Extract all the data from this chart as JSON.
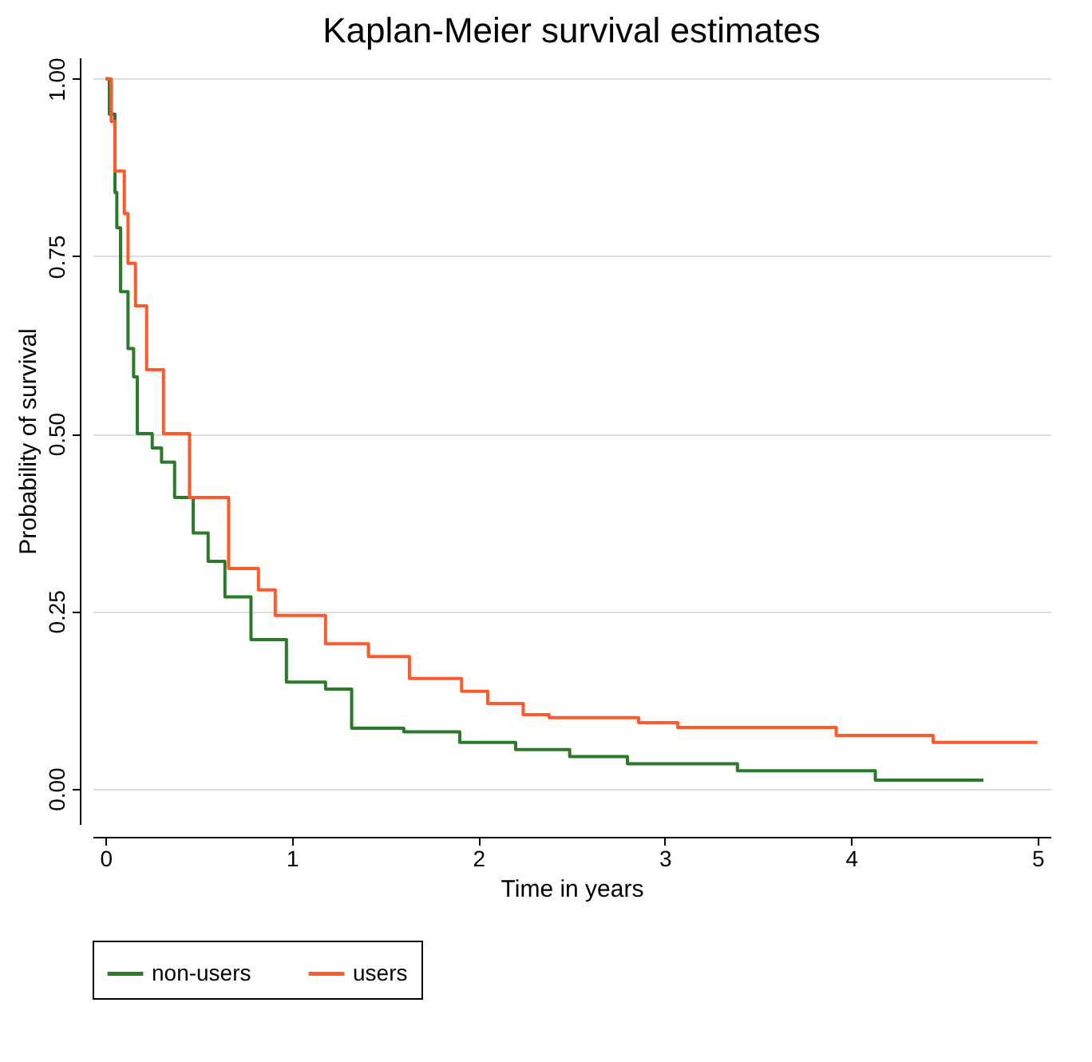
{
  "chart_data": {
    "type": "step",
    "title": "Kaplan-Meier survival estimates",
    "xlabel": "Time in years",
    "ylabel": "Probability of survival",
    "xlim": [
      -0.07,
      5.07
    ],
    "xticks": [
      0,
      1,
      2,
      3,
      4,
      5
    ],
    "ylim": [
      -0.05,
      1.03
    ],
    "yticks": [
      {
        "value": 0,
        "label": "0.00"
      },
      {
        "value": 0.25,
        "label": "0.25"
      },
      {
        "value": 0.5,
        "label": "0.50"
      },
      {
        "value": 0.75,
        "label": "0.75"
      },
      {
        "value": 1,
        "label": "1.00"
      }
    ],
    "grid": "y",
    "legend": "bottom",
    "line_style": "solid",
    "marker": "none",
    "series": [
      {
        "name": "non-users",
        "color": "#2a7a2a",
        "x": [
          0,
          0.02,
          0.05,
          0.06,
          0.08,
          0.12,
          0.15,
          0.17,
          0.25,
          0.3,
          0.37,
          0.47,
          0.55,
          0.64,
          0.78,
          0.97,
          1.18,
          1.32,
          1.6,
          1.9,
          2.2,
          2.49,
          2.8,
          3.39,
          4.13,
          4.71
        ],
        "values": [
          1,
          0.95,
          0.84,
          0.79,
          0.7,
          0.62,
          0.58,
          0.5,
          0.48,
          0.46,
          0.41,
          0.36,
          0.32,
          0.27,
          0.21,
          0.15,
          0.14,
          0.085,
          0.08,
          0.065,
          0.055,
          0.045,
          0.035,
          0.025,
          0.012,
          0.012
        ]
      },
      {
        "name": "users",
        "color": "#ff5a2a",
        "x": [
          0,
          0.03,
          0.05,
          0.1,
          0.12,
          0.16,
          0.22,
          0.31,
          0.45,
          0.66,
          0.82,
          0.91,
          1.18,
          1.41,
          1.63,
          1.91,
          2.05,
          2.24,
          2.38,
          2.86,
          3.07,
          3.92,
          4.44,
          5
        ],
        "values": [
          1,
          0.94,
          0.87,
          0.81,
          0.74,
          0.68,
          0.59,
          0.5,
          0.41,
          0.31,
          0.28,
          0.244,
          0.204,
          0.186,
          0.155,
          0.137,
          0.12,
          0.104,
          0.1,
          0.093,
          0.086,
          0.075,
          0.065,
          0.065
        ]
      }
    ]
  }
}
